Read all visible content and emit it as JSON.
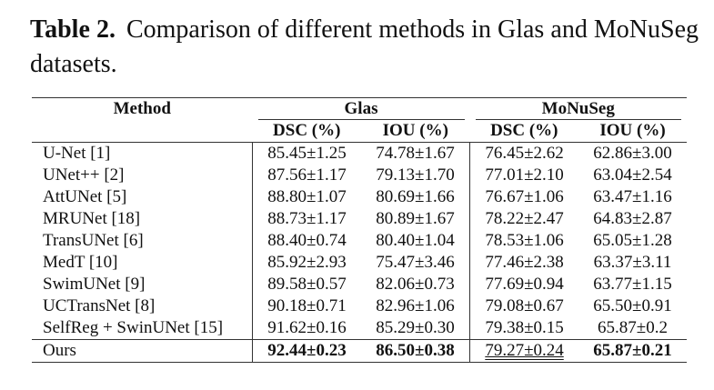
{
  "caption": {
    "label": "Table 2.",
    "text": "Comparison of different methods in Glas and MoNuSeg datasets."
  },
  "table": {
    "groups": [
      "Method",
      "Glas",
      "MoNuSeg"
    ],
    "columns": [
      "DSC (%)",
      "IOU (%)",
      "DSC (%)",
      "IOU (%)"
    ],
    "rows": [
      [
        "U-Net [1]",
        "85.45±1.25",
        "74.78±1.67",
        "76.45±2.62",
        "62.86±3.00"
      ],
      [
        "UNet++ [2]",
        "87.56±1.17",
        "79.13±1.70",
        "77.01±2.10",
        "63.04±2.54"
      ],
      [
        "AttUNet [5]",
        "88.80±1.07",
        "80.69±1.66",
        "76.67±1.06",
        "63.47±1.16"
      ],
      [
        "MRUNet [18]",
        "88.73±1.17",
        "80.89±1.67",
        "78.22±2.47",
        "64.83±2.87"
      ],
      [
        "TransUNet [6]",
        "88.40±0.74",
        "80.40±1.04",
        "78.53±1.06",
        "65.05±1.28"
      ],
      [
        "MedT [10]",
        "85.92±2.93",
        "75.47±3.46",
        "77.46±2.38",
        "63.37±3.11"
      ],
      [
        "SwimUNet [9]",
        "89.58±0.57",
        "82.06±0.73",
        "77.69±0.94",
        "63.77±1.15"
      ],
      [
        "UCTransNet [8]",
        "90.18±0.71",
        "82.96±1.06",
        "79.08±0.67",
        "65.50±0.91"
      ],
      [
        "SelfReg + SwinUNet [15]",
        "91.62±0.16",
        "85.29±0.30",
        "79.38±0.15",
        "65.87±0.2"
      ],
      [
        "Ours",
        "92.44±0.23",
        "86.50±0.38",
        "79.27±0.24",
        "65.87±0.21"
      ]
    ]
  }
}
